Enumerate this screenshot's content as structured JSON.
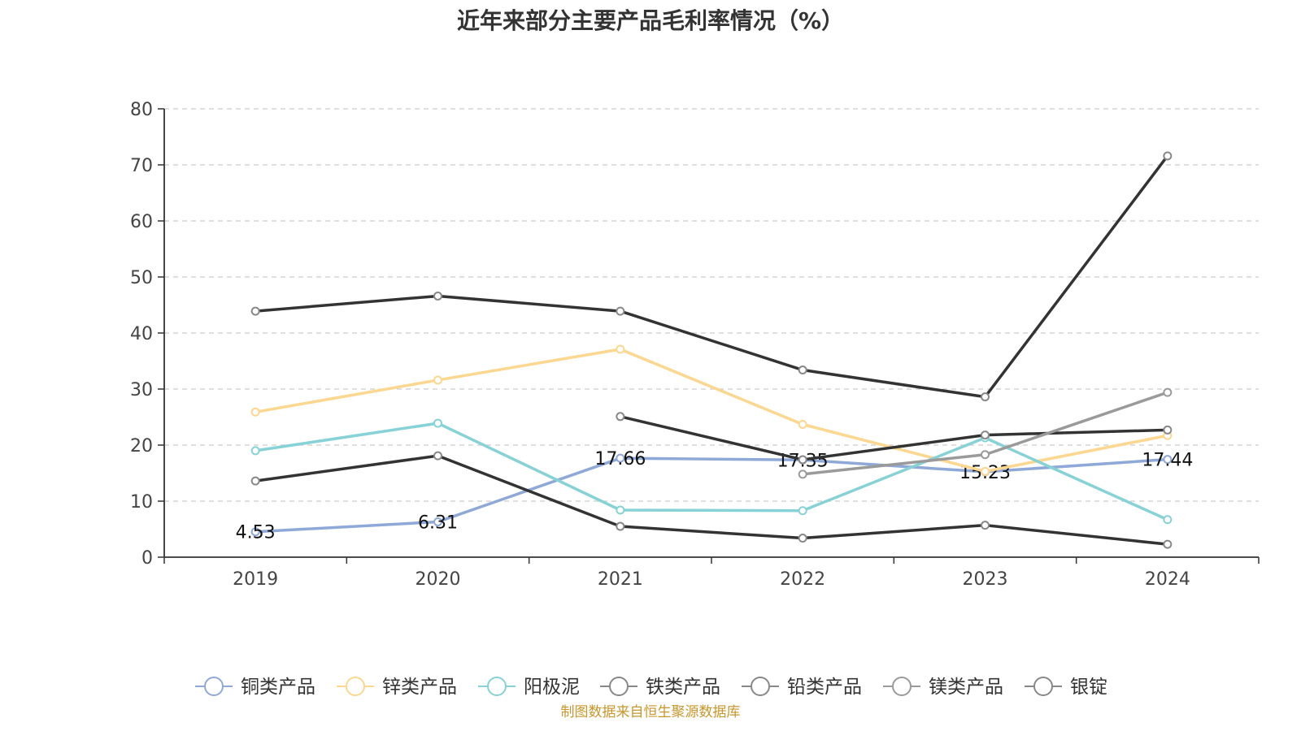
{
  "chart_data": {
    "type": "line",
    "title": "近年来部分主要产品毛利率情况（%）",
    "xlabel": "",
    "ylabel": "",
    "categories": [
      "2019",
      "2020",
      "2021",
      "2022",
      "2023",
      "2024"
    ],
    "ylim": [
      0,
      80
    ],
    "yticks": [
      0,
      10,
      20,
      30,
      40,
      50,
      60,
      70,
      80
    ],
    "grid": true,
    "legend_position": "bottom",
    "series": [
      {
        "name": "铜类产品",
        "color": "#8ea9d8",
        "values": [
          4.53,
          6.31,
          17.66,
          17.35,
          15.23,
          17.44
        ],
        "labels": [
          "4.53",
          "6.31",
          "17.66",
          "17.35",
          "15.23",
          "17.44"
        ]
      },
      {
        "name": "锌类产品",
        "color": "#fbd78f",
        "values": [
          25.9,
          31.6,
          37.1,
          23.7,
          15.3,
          21.7
        ]
      },
      {
        "name": "阳极泥",
        "color": "#86d2d6",
        "values": [
          19.0,
          23.9,
          8.4,
          8.3,
          21.3,
          6.7
        ]
      },
      {
        "name": "铁类产品",
        "color": "#333333",
        "values": [
          13.6,
          18.1,
          5.5,
          3.4,
          5.7,
          2.3
        ]
      },
      {
        "name": "铅类产品",
        "color": "#333333",
        "values": [
          null,
          null,
          25.1,
          17.4,
          21.8,
          22.7
        ]
      },
      {
        "name": "镁类产品",
        "color": "#9a9a9a",
        "values": [
          null,
          null,
          null,
          14.8,
          18.3,
          29.4
        ]
      },
      {
        "name": "银锭",
        "color": "#333333",
        "values": [
          43.9,
          46.6,
          43.9,
          33.4,
          28.6,
          71.6
        ]
      }
    ]
  },
  "source": "制图数据来自恒生聚源数据库"
}
